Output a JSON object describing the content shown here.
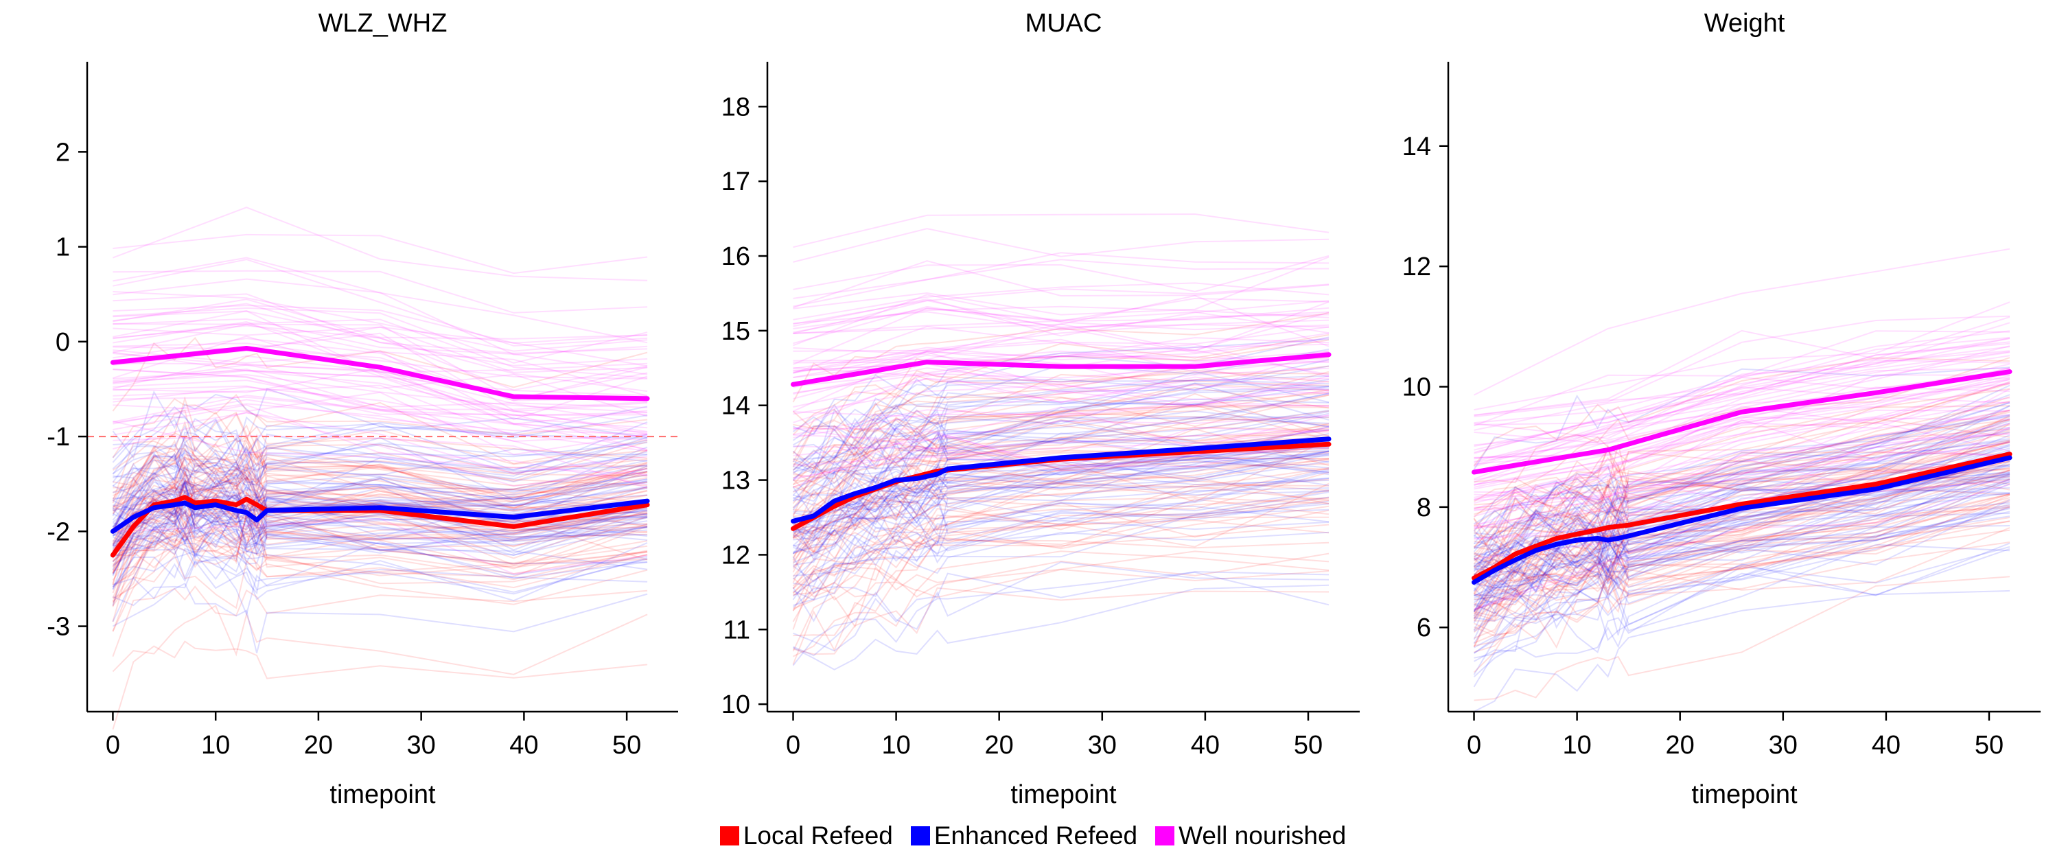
{
  "legend": [
    {
      "label": "Local Refeed",
      "color": "#ff0000"
    },
    {
      "label": "Enhanced Refeed",
      "color": "#0000ff"
    },
    {
      "label": "Well nourished",
      "color": "#ff00ff"
    }
  ],
  "chart_data": [
    {
      "type": "line",
      "title": "WLZ_WHZ",
      "xlabel": "timepoint",
      "ylabel": "",
      "xlim": [
        -2.5,
        55
      ],
      "ylim": [
        -3.9,
        2.95
      ],
      "xticks": [
        0,
        10,
        20,
        30,
        40,
        50
      ],
      "yticks": [
        -3,
        -2,
        -1,
        0,
        1,
        2
      ],
      "reference_line": {
        "y": -1,
        "color": "#ff6b6b",
        "style": "dashed"
      },
      "series": [
        {
          "name": "Local Refeed",
          "color": "#ff0000",
          "x": [
            0,
            2,
            4,
            6,
            7,
            8,
            10,
            12,
            13,
            14,
            15,
            26,
            39,
            52
          ],
          "y": [
            -2.25,
            -1.95,
            -1.72,
            -1.68,
            -1.64,
            -1.7,
            -1.68,
            -1.72,
            -1.66,
            -1.72,
            -1.78,
            -1.78,
            -1.95,
            -1.72
          ]
        },
        {
          "name": "Enhanced Refeed",
          "color": "#0000ff",
          "x": [
            0,
            2,
            4,
            6,
            7,
            8,
            10,
            12,
            13,
            14,
            15,
            26,
            39,
            52
          ],
          "y": [
            -2.0,
            -1.85,
            -1.75,
            -1.72,
            -1.7,
            -1.75,
            -1.72,
            -1.78,
            -1.8,
            -1.88,
            -1.78,
            -1.75,
            -1.85,
            -1.68
          ]
        },
        {
          "name": "Well nourished",
          "color": "#ff00ff",
          "x": [
            0,
            13,
            26,
            39,
            52
          ],
          "y": [
            -0.22,
            -0.07,
            -0.27,
            -0.58,
            -0.6
          ]
        }
      ]
    },
    {
      "type": "line",
      "title": "MUAC",
      "xlabel": "timepoint",
      "ylabel": "",
      "xlim": [
        -2.5,
        55
      ],
      "ylim": [
        9.9,
        18.6
      ],
      "xticks": [
        0,
        10,
        20,
        30,
        40,
        50
      ],
      "yticks": [
        10,
        11,
        12,
        13,
        14,
        15,
        16,
        17,
        18
      ],
      "series": [
        {
          "name": "Local Refeed",
          "color": "#ff0000",
          "x": [
            0,
            2,
            4,
            6,
            8,
            10,
            12,
            14,
            26,
            39,
            52
          ],
          "y": [
            12.35,
            12.5,
            12.65,
            12.78,
            12.88,
            12.98,
            13.05,
            13.12,
            13.28,
            13.38,
            13.48
          ]
        },
        {
          "name": "Enhanced Refeed",
          "color": "#0000ff",
          "x": [
            0,
            2,
            4,
            6,
            8,
            10,
            12,
            14,
            15,
            26,
            39,
            52
          ],
          "y": [
            12.45,
            12.52,
            12.72,
            12.82,
            12.9,
            13.0,
            13.02,
            13.08,
            13.15,
            13.3,
            13.42,
            13.55
          ]
        },
        {
          "name": "Well nourished",
          "color": "#ff00ff",
          "x": [
            0,
            13,
            26,
            39,
            52
          ],
          "y": [
            14.28,
            14.58,
            14.52,
            14.52,
            14.68
          ]
        }
      ]
    },
    {
      "type": "line",
      "title": "Weight",
      "xlabel": "timepoint",
      "ylabel": "",
      "xlim": [
        -2.5,
        55
      ],
      "ylim": [
        4.6,
        15.4
      ],
      "xticks": [
        0,
        10,
        20,
        30,
        40,
        50
      ],
      "yticks": [
        6,
        8,
        10,
        12,
        14
      ],
      "series": [
        {
          "name": "Local Refeed",
          "color": "#ff0000",
          "x": [
            0,
            2,
            4,
            6,
            8,
            10,
            12,
            13,
            14,
            15,
            26,
            39,
            52
          ],
          "y": [
            6.82,
            7.0,
            7.22,
            7.35,
            7.48,
            7.55,
            7.62,
            7.66,
            7.68,
            7.7,
            8.05,
            8.38,
            8.88
          ]
        },
        {
          "name": "Enhanced Refeed",
          "color": "#0000ff",
          "x": [
            0,
            2,
            4,
            6,
            8,
            10,
            12,
            13,
            14,
            15,
            26,
            39,
            52
          ],
          "y": [
            6.75,
            6.95,
            7.12,
            7.28,
            7.38,
            7.45,
            7.48,
            7.45,
            7.48,
            7.52,
            7.98,
            8.3,
            8.82
          ]
        },
        {
          "name": "Well nourished",
          "color": "#ff00ff",
          "x": [
            0,
            13,
            26,
            39,
            52
          ],
          "y": [
            8.58,
            8.95,
            9.58,
            9.9,
            10.25
          ]
        }
      ]
    }
  ]
}
